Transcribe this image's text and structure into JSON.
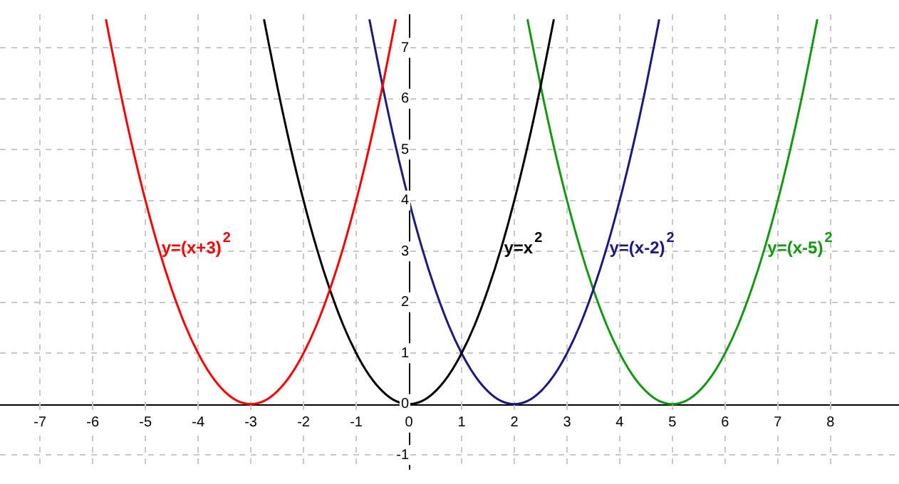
{
  "chart_data": {
    "type": "line",
    "marker": "none",
    "line_style": "solid",
    "grid": true,
    "legend": false,
    "xlim": [
      -7.76,
      9.3
    ],
    "ylim": [
      -1.29,
      7.66
    ],
    "xticks": [
      -7,
      -6,
      -5,
      -4,
      -3,
      -2,
      -1,
      0,
      1,
      2,
      3,
      4,
      5,
      6,
      7,
      8
    ],
    "yticks": [
      -1,
      0,
      1,
      2,
      3,
      4,
      5,
      6,
      7
    ],
    "series": [
      {
        "color": "#ff0000",
        "x": [
          -5.75,
          -5.5,
          -5.25,
          -5,
          -4.75,
          -4.5,
          -4.25,
          -4,
          -3.75,
          -3.5,
          -3.25,
          -3,
          -2.75,
          -2.5,
          -2.25,
          -2,
          -1.75,
          -1.5,
          -1.25,
          -1,
          -0.75,
          -0.5,
          -0.25
        ],
        "values": [
          7.56,
          6.25,
          5.06,
          4,
          3.06,
          2.25,
          1.56,
          1,
          0.56,
          0.25,
          0.06,
          0,
          0.06,
          0.25,
          0.56,
          1,
          1.56,
          2.25,
          3.06,
          4,
          5.06,
          6.25,
          7.56
        ]
      },
      {
        "color": "#000000",
        "x": [
          -2.75,
          -2.5,
          -2.25,
          -2,
          -1.75,
          -1.5,
          -1.25,
          -1,
          -0.75,
          -0.5,
          -0.25,
          0,
          0.25,
          0.5,
          0.75,
          1,
          1.25,
          1.5,
          1.75,
          2,
          2.25,
          2.5,
          2.75
        ],
        "values": [
          7.56,
          6.25,
          5.06,
          4,
          3.06,
          2.25,
          1.56,
          1,
          0.56,
          0.25,
          0.06,
          0,
          0.06,
          0.25,
          0.56,
          1,
          1.56,
          2.25,
          3.06,
          4,
          5.06,
          6.25,
          7.56
        ]
      },
      {
        "color": "#1a1a80",
        "x": [
          -0.75,
          -0.5,
          -0.25,
          0,
          0.25,
          0.5,
          0.75,
          1,
          1.25,
          1.5,
          1.75,
          2,
          2.25,
          2.5,
          2.75,
          3,
          3.25,
          3.5,
          3.75,
          4,
          4.25,
          4.5,
          4.75
        ],
        "values": [
          7.56,
          6.25,
          5.06,
          4,
          3.06,
          2.25,
          1.56,
          1,
          0.56,
          0.25,
          0.06,
          0,
          0.06,
          0.25,
          0.56,
          1,
          1.56,
          2.25,
          3.06,
          4,
          5.06,
          6.25,
          7.56
        ]
      },
      {
        "color": "#119911",
        "x": [
          2.25,
          2.5,
          2.75,
          3,
          3.25,
          3.5,
          3.75,
          4,
          4.25,
          4.5,
          4.75,
          5,
          5.25,
          5.5,
          5.75,
          6,
          6.25,
          6.5,
          6.75,
          7,
          7.25,
          7.5,
          7.75
        ],
        "values": [
          7.56,
          6.25,
          5.06,
          4,
          3.06,
          2.25,
          1.56,
          1,
          0.56,
          0.25,
          0.06,
          0,
          0.06,
          0.25,
          0.56,
          1,
          1.56,
          2.25,
          3.06,
          4,
          5.06,
          6.25,
          7.56
        ]
      }
    ],
    "annotations": [
      {
        "text": "y=(x+3)$^{2}$",
        "x": -4.75,
        "y": 3.06
      },
      {
        "text": "y=x$^{2}$",
        "x": 1.75,
        "y": 3.06
      },
      {
        "text": "y=(x-2)$^{2}$",
        "x": 3.75,
        "y": 3.06
      },
      {
        "text": "y=(x-5)$^{2}$",
        "x": 6.75,
        "y": 3.06
      }
    ]
  }
}
